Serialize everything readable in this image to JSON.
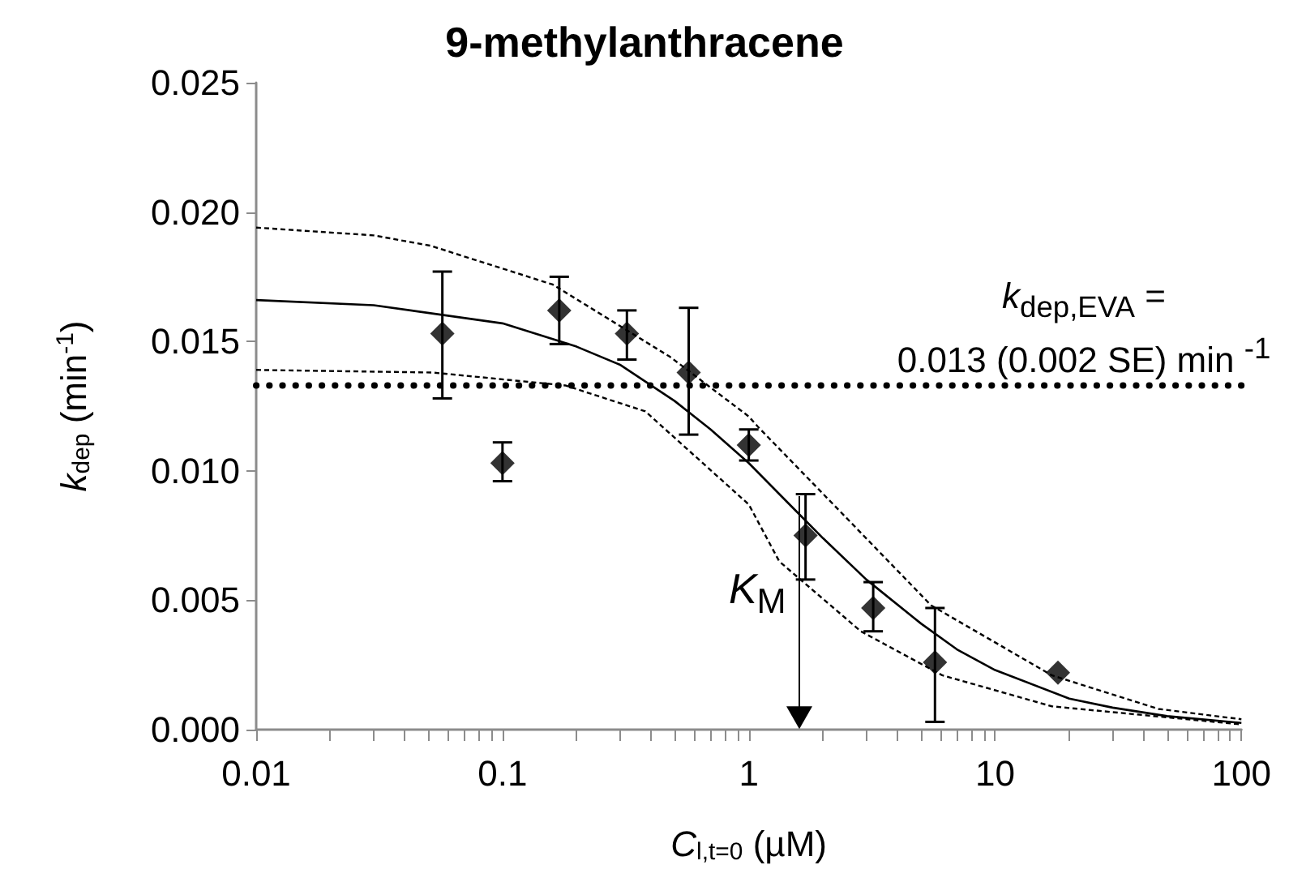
{
  "chart_data": {
    "type": "scatter",
    "title": "9-methylanthracene",
    "xlabel": "C$_{l,t=0}$ (µM)",
    "ylabel": "k$_{dep}$ (min$^{-1}$)",
    "log": "x",
    "xlim": [
      0.01,
      100
    ],
    "xticks": [
      0.01,
      0.1,
      1,
      10,
      100
    ],
    "ylim": [
      0,
      0.025
    ],
    "yticks": [
      {
        "value": 0,
        "label": "0.000"
      },
      {
        "value": 0.005,
        "label": "0.005"
      },
      {
        "value": 0.01,
        "label": "0.010"
      },
      {
        "value": 0.015,
        "label": "0.015"
      },
      {
        "value": 0.02,
        "label": "0.020"
      },
      {
        "value": 0.025,
        "label": "0.025"
      }
    ],
    "grid": false,
    "series": [
      {
        "color": "#000000",
        "marker": "diamond",
        "x": [
          0.057,
          0.1,
          0.17,
          0.32,
          0.57,
          1.0,
          1.7,
          3.2,
          5.7,
          18
        ],
        "values": [
          0.0153,
          0.0103,
          0.0162,
          0.0153,
          0.0138,
          0.011,
          0.0075,
          0.0047,
          0.0026,
          0.0022
        ],
        "errors": [
          [
            0.0128,
            0.0177
          ],
          [
            0.0096,
            0.0111
          ],
          [
            0.0149,
            0.0175
          ],
          [
            0.0143,
            0.0162
          ],
          [
            0.0114,
            0.0163
          ],
          [
            0.0104,
            0.0116
          ],
          [
            0.0058,
            0.0091
          ],
          [
            0.0038,
            0.0057
          ],
          [
            0.0003,
            0.0047
          ],
          null
        ]
      },
      {
        "type": "line",
        "color": "#000000",
        "marker": "none",
        "line_style": "solid",
        "x": [
          0.01,
          0.03,
          0.1,
          0.2,
          0.3,
          0.5,
          0.7,
          1,
          1.5,
          2,
          3,
          5,
          7,
          10,
          20,
          30,
          50,
          100
        ],
        "values": [
          0.0166,
          0.0164,
          0.0157,
          0.0148,
          0.0141,
          0.0127,
          0.0116,
          0.0103,
          0.0086,
          0.0074,
          0.0058,
          0.0041,
          0.0031,
          0.0023,
          0.0012,
          0.00085,
          0.00052,
          0.00026
        ]
      },
      {
        "type": "line",
        "color": "#000000",
        "marker": "none",
        "line_style": "dotted",
        "x": [
          0.01,
          0.03,
          0.051,
          0.16,
          0.48,
          1.0,
          1.09,
          2.6,
          5.5,
          17,
          46,
          100
        ],
        "values": [
          0.0194,
          0.0191,
          0.0187,
          0.0172,
          0.0144,
          0.0121,
          0.0117,
          0.008,
          0.0048,
          0.0021,
          0.0008,
          0.0004
        ]
      },
      {
        "type": "line",
        "color": "#000000",
        "marker": "none",
        "line_style": "dotted",
        "x": [
          0.01,
          0.052,
          0.18,
          0.38,
          1.0,
          1.33,
          2.85,
          6.1,
          17,
          100
        ],
        "values": [
          0.0139,
          0.0138,
          0.0133,
          0.0123,
          0.0087,
          0.0065,
          0.0038,
          0.0021,
          0.0009,
          0.0002
        ]
      }
    ],
    "ref_lines": [
      {
        "axis": "y",
        "value": 0.0133,
        "label": "k$_{dep,EVA}$  =\n0.013 (0.002 SE) min $^{-1}$",
        "color": "#000000",
        "line_style": "dotted"
      }
    ],
    "annotations": [
      {
        "text": "K$_{M}$",
        "x": 1.6,
        "y": 0.009
      }
    ]
  }
}
